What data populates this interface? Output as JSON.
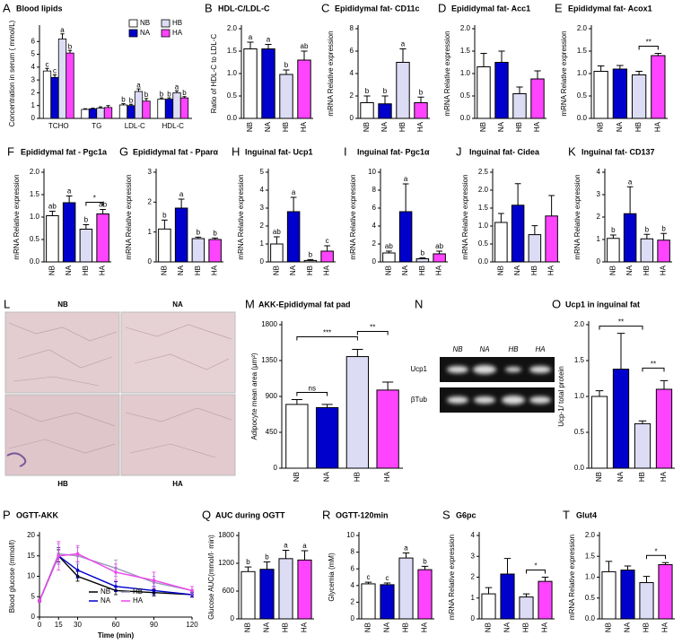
{
  "chart_data": [
    {
      "type": "grouped_bar",
      "panel": "A",
      "title": "Blood lipids",
      "ylabel": "Concentration in serum ( mmol/L)",
      "categories": [
        "TCHO",
        "TG",
        "LDL-C",
        "HDL-C"
      ],
      "series": [
        {
          "name": "NB",
          "color": "#ffffff",
          "values": [
            3.7,
            0.7,
            1.05,
            1.5
          ],
          "errors": [
            0.2,
            0.05,
            0.1,
            0.1
          ],
          "letters": [
            "c",
            null,
            "b",
            "b"
          ]
        },
        {
          "name": "NA",
          "color": "#0000cc",
          "values": [
            3.2,
            0.75,
            1.0,
            1.5
          ],
          "errors": [
            0.2,
            0.05,
            0.1,
            0.1
          ],
          "letters": [
            "c",
            null,
            "b",
            "b"
          ]
        },
        {
          "name": "HB",
          "color": "#dcdcf5",
          "values": [
            6.2,
            0.8,
            2.1,
            2.0
          ],
          "errors": [
            0.4,
            0.1,
            0.2,
            0.15
          ],
          "letters": [
            "a",
            null,
            "a",
            "a"
          ]
        },
        {
          "name": "HA",
          "color": "#ff44ff",
          "values": [
            5.1,
            0.85,
            1.35,
            1.6
          ],
          "errors": [
            0.2,
            0.15,
            0.2,
            0.1
          ],
          "letters": [
            "b",
            null,
            "b",
            "b"
          ]
        }
      ],
      "ylim": [
        0,
        7
      ],
      "yticks": [
        0,
        1,
        2,
        3,
        4,
        5,
        6
      ],
      "legend": "upper right"
    },
    {
      "type": "bar",
      "panel": "B",
      "title": "HDL-C/LDL-C",
      "ylabel": "Ratio of HDL-C to LDL-C",
      "categories": [
        "NB",
        "NA",
        "HB",
        "HA"
      ],
      "colors": [
        "#ffffff",
        "#0000cc",
        "#dcdcf5",
        "#ff44ff"
      ],
      "values": [
        1.55,
        1.55,
        0.98,
        1.3
      ],
      "errors": [
        0.15,
        0.1,
        0.1,
        0.2
      ],
      "letters": [
        "a",
        "a",
        "b",
        "ab"
      ],
      "ylim": [
        0,
        2
      ],
      "yticks": [
        {
          "value": 0,
          "label": "0.0"
        },
        0.5,
        {
          "value": 1,
          "label": "1.0"
        },
        1.5,
        {
          "value": 2,
          "label": "2.0"
        }
      ]
    },
    {
      "type": "bar",
      "panel": "C",
      "title": "Epididymal fat- CD11c",
      "ylabel": "mRNA Relative expression",
      "categories": [
        "NB",
        "NA",
        "HB",
        "HA"
      ],
      "colors": [
        "#ffffff",
        "#0000cc",
        "#dcdcf5",
        "#ff44ff"
      ],
      "values": [
        1.4,
        1.3,
        5.0,
        1.4
      ],
      "errors": [
        0.6,
        0.7,
        1.2,
        0.5
      ],
      "letters": [
        "b",
        "b",
        "a",
        "b"
      ],
      "ylim": [
        0,
        8
      ],
      "yticks": [
        0,
        2,
        4,
        6,
        8
      ]
    },
    {
      "type": "bar",
      "panel": "D",
      "title": "Epididymal fat- Acc1",
      "ylabel": "mRNA Relative expression",
      "categories": [
        "NB",
        "NA",
        "HB",
        "HA"
      ],
      "colors": [
        "#ffffff",
        "#0000cc",
        "#dcdcf5",
        "#ff44ff"
      ],
      "values": [
        1.15,
        1.25,
        0.55,
        0.88
      ],
      "errors": [
        0.3,
        0.25,
        0.15,
        0.18
      ],
      "ylim": [
        0,
        2
      ],
      "yticks": [
        {
          "value": 0,
          "label": "0.0"
        },
        0.5,
        {
          "value": 1,
          "label": "1.0"
        },
        1.5,
        {
          "value": 2,
          "label": "2.0"
        }
      ]
    },
    {
      "type": "bar",
      "panel": "E",
      "title": "Epididymal fat- Acox1",
      "ylabel": "mRNA Relative expression",
      "categories": [
        "NB",
        "NA",
        "HB",
        "HA"
      ],
      "colors": [
        "#ffffff",
        "#0000cc",
        "#dcdcf5",
        "#ff44ff"
      ],
      "values": [
        1.05,
        1.1,
        0.97,
        1.4
      ],
      "errors": [
        0.12,
        0.08,
        0.08,
        0.05
      ],
      "brackets": [
        {
          "from": 2,
          "to": 3,
          "label": "**"
        }
      ],
      "ylim": [
        0,
        2
      ],
      "yticks": [
        {
          "value": 0,
          "label": "0.0"
        },
        0.5,
        {
          "value": 1,
          "label": "1.0"
        },
        1.5,
        {
          "value": 2,
          "label": "2.0"
        }
      ]
    },
    {
      "type": "bar",
      "panel": "F",
      "title": "Epididymal fat - Pgc1a",
      "ylabel": "mRNA Relative expression",
      "categories": [
        "NB",
        "NA",
        "HB",
        "HA"
      ],
      "colors": [
        "#ffffff",
        "#0000cc",
        "#dcdcf5",
        "#ff44ff"
      ],
      "values": [
        1.03,
        1.32,
        0.73,
        1.07
      ],
      "errors": [
        0.1,
        0.15,
        0.1,
        0.1
      ],
      "letters": [
        "ab",
        "a",
        "b",
        "ab"
      ],
      "brackets": [
        {
          "from": 2,
          "to": 3,
          "label": "*"
        }
      ],
      "ylim": [
        0,
        2
      ],
      "yticks": [
        {
          "value": 0,
          "label": "0.0"
        },
        0.5,
        {
          "value": 1,
          "label": "1.0"
        },
        1.5,
        {
          "value": 2,
          "label": "2.0"
        }
      ]
    },
    {
      "type": "bar",
      "panel": "G",
      "title": "Epididymal fat - Pparα",
      "ylabel": "mRNA Relative expression",
      "categories": [
        "NB",
        "NA",
        "HB",
        "HA"
      ],
      "colors": [
        "#ffffff",
        "#0000cc",
        "#dcdcf5",
        "#ff44ff"
      ],
      "values": [
        1.1,
        1.8,
        0.78,
        0.75
      ],
      "errors": [
        0.3,
        0.3,
        0.05,
        0.05
      ],
      "letters": [
        "b",
        "a",
        "b",
        "b"
      ],
      "ylim": [
        0,
        3
      ],
      "yticks": [
        0,
        1,
        2,
        3
      ]
    },
    {
      "type": "bar",
      "panel": "H",
      "title": "Inguinal fat- Ucp1",
      "ylabel": "mRNA Relative expression",
      "categories": [
        "NB",
        "NA",
        "HB",
        "HA"
      ],
      "colors": [
        "#ffffff",
        "#0000cc",
        "#dcdcf5",
        "#ff44ff"
      ],
      "values": [
        1.0,
        2.8,
        0.08,
        0.6
      ],
      "errors": [
        0.4,
        0.8,
        0.05,
        0.3
      ],
      "letters": [
        "ab",
        "a",
        "b",
        "c"
      ],
      "ylim": [
        0,
        5
      ],
      "yticks": [
        0,
        1,
        2,
        3,
        4,
        5
      ]
    },
    {
      "type": "bar",
      "panel": "I",
      "title": "Inguinal fat- Pgc1α",
      "ylabel": "mRNA Relative expression",
      "categories": [
        "NB",
        "NA",
        "HB",
        "HA"
      ],
      "colors": [
        "#ffffff",
        "#0000cc",
        "#dcdcf5",
        "#ff44ff"
      ],
      "values": [
        1.0,
        5.6,
        0.35,
        0.9
      ],
      "errors": [
        0.2,
        3.1,
        0.1,
        0.3
      ],
      "letters": [
        "ab",
        "a",
        "b",
        "ab"
      ],
      "ylim": [
        0,
        10
      ],
      "yticks": [
        0,
        2,
        4,
        6,
        8,
        10
      ]
    },
    {
      "type": "bar",
      "panel": "J",
      "title": "Inguinal fat- Cidea",
      "ylabel": "mRNA Relative expression",
      "categories": [
        "NB",
        "NA",
        "HB",
        "HA"
      ],
      "colors": [
        "#ffffff",
        "#0000cc",
        "#dcdcf5",
        "#ff44ff"
      ],
      "values": [
        1.1,
        1.58,
        0.76,
        1.28
      ],
      "errors": [
        0.25,
        0.6,
        0.25,
        0.57
      ],
      "ylim": [
        0,
        2.5
      ],
      "yticks": [
        {
          "value": 0,
          "label": "0.0"
        },
        0.5,
        {
          "value": 1,
          "label": "1.0"
        },
        1.5,
        {
          "value": 2,
          "label": "2.0"
        },
        2.5
      ]
    },
    {
      "type": "bar",
      "panel": "K",
      "title": "Inguinal fat- CD137",
      "ylabel": "mRNA Relative expression",
      "categories": [
        "NB",
        "NA",
        "HB",
        "HA"
      ],
      "colors": [
        "#ffffff",
        "#0000cc",
        "#dcdcf5",
        "#ff44ff"
      ],
      "values": [
        1.05,
        2.15,
        1.03,
        0.97
      ],
      "errors": [
        0.15,
        1.2,
        0.2,
        0.3
      ],
      "letters": [
        "b",
        "a",
        "b",
        "b"
      ],
      "ylim": [
        0,
        4
      ],
      "yticks": [
        0,
        1,
        2,
        3,
        4
      ]
    },
    {
      "type": "bar",
      "panel": "M",
      "title": "AKK-Epididymal fat pad",
      "ylabel": "Adipocyte mean area (μm²)",
      "categories": [
        "NB",
        "NA",
        "HB",
        "HA"
      ],
      "colors": [
        "#ffffff",
        "#0000cc",
        "#dcdcf5",
        "#ff44ff"
      ],
      "values": [
        800,
        760,
        1400,
        980
      ],
      "errors": [
        60,
        40,
        90,
        100
      ],
      "brackets": [
        {
          "from": 0,
          "to": 1,
          "label": "ns"
        },
        {
          "from": 0,
          "to": 2,
          "label": "***"
        },
        {
          "from": 2,
          "to": 3,
          "label": "**"
        }
      ],
      "ylim": [
        0,
        1800
      ],
      "yticks": [
        0,
        450,
        900,
        1350,
        1800
      ]
    },
    {
      "type": "bar",
      "panel": "O",
      "title": "Ucp1 in inguinal fat",
      "ylabel": "Ucp-1/ total protein",
      "categories": [
        "NB",
        "NA",
        "HB",
        "HA"
      ],
      "colors": [
        "#ffffff",
        "#0000cc",
        "#dcdcf5",
        "#ff44ff"
      ],
      "values": [
        1.0,
        1.38,
        0.62,
        1.1
      ],
      "errors": [
        0.08,
        0.5,
        0.04,
        0.12
      ],
      "brackets": [
        {
          "from": 0,
          "to": 2,
          "label": "**"
        },
        {
          "from": 2,
          "to": 3,
          "label": "**"
        }
      ],
      "ylim": [
        0,
        2
      ],
      "yticks": [
        {
          "value": 0,
          "label": "0.0"
        },
        0.5,
        {
          "value": 1,
          "label": "1.0"
        },
        1.5,
        {
          "value": 2,
          "label": "2.0"
        }
      ]
    },
    {
      "type": "line",
      "panel": "P",
      "title": "OGTT-AKK",
      "ylabel": "Blood glucose (mmol/l)",
      "xlabel": "Time (min)",
      "x": [
        0,
        15,
        30,
        60,
        90,
        120
      ],
      "series": [
        {
          "name": "NB",
          "color": "#000000",
          "values": [
            4,
            15,
            10,
            6.5,
            6,
            5.5
          ],
          "errors": [
            0.3,
            1.5,
            1.2,
            1,
            0.8,
            0.6
          ]
        },
        {
          "name": "NA",
          "color": "#0000cc",
          "values": [
            4,
            15,
            11.5,
            7.5,
            6.5,
            5.5
          ],
          "errors": [
            0.3,
            2,
            2,
            1.2,
            1,
            0.6
          ]
        },
        {
          "name": "HB",
          "color": "#9999bb",
          "values": [
            4,
            15.5,
            15,
            12,
            8.5,
            6.5
          ],
          "errors": [
            0.3,
            2.5,
            2,
            2,
            1.5,
            1
          ]
        },
        {
          "name": "HA",
          "color": "#ee44ee",
          "values": [
            4,
            15,
            15.5,
            11,
            9,
            6.5
          ],
          "errors": [
            0.3,
            3.5,
            2,
            2,
            2,
            1
          ]
        }
      ],
      "xlim": [
        0,
        120
      ],
      "xticks": [
        0,
        15,
        30,
        60,
        90,
        120
      ],
      "ylim": [
        0,
        20
      ],
      "yticks": [
        0,
        5,
        10,
        15,
        20
      ],
      "legend": "lower center"
    },
    {
      "type": "bar",
      "panel": "Q",
      "title": "AUC during OGTT",
      "ylabel": "Glucose AUC(mmol/l· min)",
      "categories": [
        "NB",
        "NA",
        "HB",
        "HA"
      ],
      "colors": [
        "#ffffff",
        "#0000cc",
        "#dcdcf5",
        "#ff44ff"
      ],
      "values": [
        1020,
        1070,
        1300,
        1270
      ],
      "errors": [
        100,
        160,
        180,
        200
      ],
      "letters": [
        "b",
        "b",
        "a",
        "a"
      ],
      "ylim": [
        0,
        1800
      ],
      "yticks": [
        0,
        600,
        1200,
        1800
      ]
    },
    {
      "type": "bar",
      "panel": "R",
      "title": "OGTT-120min",
      "ylabel": "Glycemia (mM)",
      "categories": [
        "NB",
        "NA",
        "HB",
        "HA"
      ],
      "colors": [
        "#ffffff",
        "#0000cc",
        "#dcdcf5",
        "#ff44ff"
      ],
      "values": [
        4.2,
        4.1,
        7.3,
        5.9
      ],
      "errors": [
        0.2,
        0.2,
        0.6,
        0.4
      ],
      "letters": [
        "c",
        "c",
        "a",
        "b"
      ],
      "ylim": [
        0,
        10
      ],
      "yticks": [
        0,
        2,
        4,
        6,
        8,
        10
      ]
    },
    {
      "type": "bar",
      "panel": "S",
      "title": "G6pc",
      "ylabel": "mRNA Relative expression",
      "categories": [
        "NB",
        "NA",
        "HB",
        "HA"
      ],
      "colors": [
        "#ffffff",
        "#0000cc",
        "#dcdcf5",
        "#ff44ff"
      ],
      "values": [
        1.2,
        2.15,
        1.05,
        1.8
      ],
      "errors": [
        0.3,
        0.75,
        0.15,
        0.2
      ],
      "brackets": [
        {
          "from": 2,
          "to": 3,
          "label": "*"
        }
      ],
      "ylim": [
        0,
        4
      ],
      "yticks": [
        0,
        1,
        2,
        3,
        4
      ]
    },
    {
      "type": "bar",
      "panel": "T",
      "title": "Glut4",
      "ylabel": "mRNA Relative expression",
      "categories": [
        "NB",
        "NA",
        "HB",
        "HA"
      ],
      "colors": [
        "#ffffff",
        "#0000cc",
        "#dcdcf5",
        "#ff44ff"
      ],
      "values": [
        1.13,
        1.17,
        0.87,
        1.3
      ],
      "errors": [
        0.25,
        0.1,
        0.15,
        0.05
      ],
      "brackets": [
        {
          "from": 2,
          "to": 3,
          "label": "*"
        }
      ],
      "ylim": [
        0,
        2
      ],
      "yticks": [
        {
          "value": 0,
          "label": "0.0"
        },
        0.5,
        {
          "value": 1,
          "label": "1.0"
        },
        1.5,
        {
          "value": 2,
          "label": "2.0"
        }
      ]
    }
  ],
  "micrographs": {
    "panel": "L",
    "labels": [
      "NB",
      "NA",
      "HB",
      "HA"
    ]
  },
  "blot": {
    "panel": "N",
    "lanes": [
      "NB",
      "NA",
      "HB",
      "HA"
    ],
    "rows": [
      "Ucp1",
      "βTub"
    ]
  }
}
